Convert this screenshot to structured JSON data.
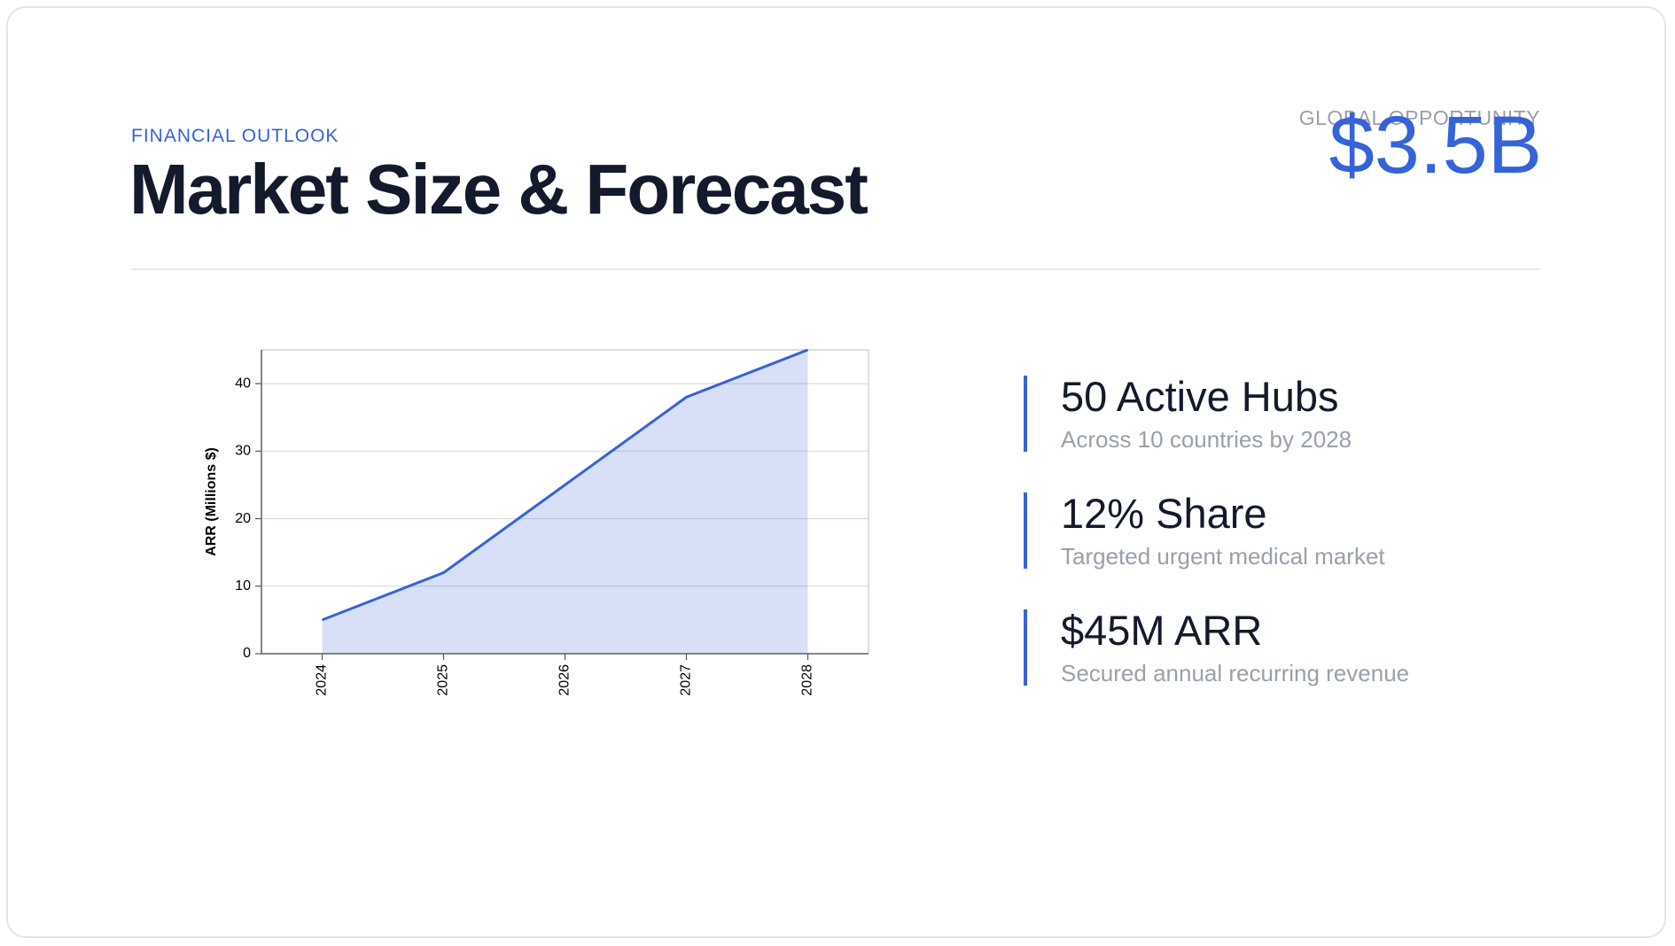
{
  "header": {
    "eyebrow": "FINANCIAL OUTLOOK",
    "title": "Market Size & Forecast",
    "highlight_label": "GLOBAL OPPORTUNITY",
    "highlight_value": "$3.5B"
  },
  "chart_data": {
    "type": "area",
    "y_label": "ARR (Millions $)",
    "categories": [
      "2024",
      "2025",
      "2026",
      "2027",
      "2028"
    ],
    "values": [
      5,
      12,
      25,
      38,
      45
    ],
    "color": "#3563d8",
    "ylim": [
      0,
      45
    ],
    "yticks": [
      0,
      10,
      20,
      30,
      40
    ],
    "grid": true
  },
  "stats": [
    {
      "title": "50 Active Hubs",
      "subtitle": "Across 10 countries by 2028"
    },
    {
      "title": "12% Share",
      "subtitle": "Targeted urgent medical market"
    },
    {
      "title": "$45M ARR",
      "subtitle": "Secured annual recurring revenue"
    }
  ]
}
